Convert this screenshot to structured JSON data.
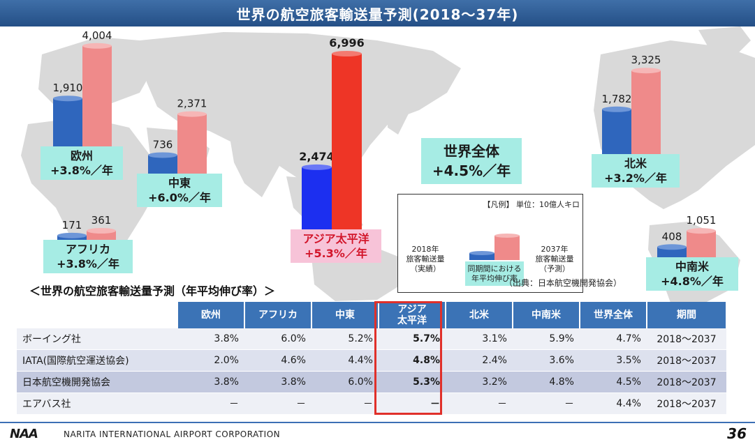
{
  "title": "世界の航空旅客輸送量予測(2018～37年)",
  "chart_data": {
    "type": "bar",
    "unit": "単位：10億人キロ",
    "series": [
      {
        "name": "2018年旅客輸送量（実績）",
        "color": "#2f66bd"
      },
      {
        "name": "2037年旅客輸送量（予測）",
        "color": "#ef8a8a"
      }
    ],
    "regions": [
      {
        "key": "europe",
        "label_line1": "欧州",
        "label_line2": "+3.8%／年",
        "values": [
          1910,
          4004
        ],
        "value_labels": [
          "1,910",
          "4,004"
        ]
      },
      {
        "key": "middle_east",
        "label_line1": "中東",
        "label_line2": "+6.0%／年",
        "values": [
          736,
          2371
        ],
        "value_labels": [
          "736",
          "2,371"
        ]
      },
      {
        "key": "africa",
        "label_line1": "アフリカ",
        "label_line2": "+3.8%／年",
        "values": [
          171,
          361
        ],
        "value_labels": [
          "171",
          "361"
        ]
      },
      {
        "key": "asia_pacific",
        "label_line1": "アジア太平洋",
        "label_line2": "+5.3%／年",
        "values": [
          2474,
          6996
        ],
        "value_labels": [
          "2,474",
          "6,996"
        ]
      },
      {
        "key": "north_america",
        "label_line1": "北米",
        "label_line2": "+3.2%／年",
        "values": [
          1782,
          3325
        ],
        "value_labels": [
          "1,782",
          "3,325"
        ]
      },
      {
        "key": "latin_america",
        "label_line1": "中南米",
        "label_line2": "+4.8%／年",
        "values": [
          408,
          1051
        ],
        "value_labels": [
          "408",
          "1,051"
        ]
      }
    ],
    "world": {
      "line1": "世界全体",
      "line2": "+4.5%／年"
    }
  },
  "legend": {
    "title": "【凡例】 単位：10億人キロ",
    "left_line1": "2018年",
    "left_line2": "旅客輸送量",
    "left_line3": "（実績）",
    "right_line1": "2037年",
    "right_line2": "旅客輸送量",
    "right_line3": "（予測）",
    "center_line1": "同期間における",
    "center_line2": "年平均伸び率"
  },
  "source_note": "（出典：日本航空機開発協会）",
  "table": {
    "heading": "＜世界の航空旅客輸送量予測（年平均伸び率）＞",
    "headers": [
      "",
      "欧州",
      "アフリカ",
      "中東",
      "アジア太平洋",
      "北米",
      "中南米",
      "世界全体",
      "期間"
    ],
    "rows": [
      {
        "label": "ボーイング社",
        "cells": [
          "3.8%",
          "6.0%",
          "5.2%",
          "5.7%",
          "3.1%",
          "5.9%",
          "4.7%"
        ],
        "period": "2018～2037"
      },
      {
        "label": "IATA(国際航空運送協会)",
        "cells": [
          "2.0%",
          "4.6%",
          "4.4%",
          "4.8%",
          "2.4%",
          "3.6%",
          "3.5%"
        ],
        "period": "2018～2037"
      },
      {
        "label": "日本航空機開発協会",
        "cells": [
          "3.8%",
          "3.8%",
          "6.0%",
          "5.3%",
          "3.2%",
          "4.8%",
          "4.5%"
        ],
        "period": "2018～2037"
      },
      {
        "label": "エアバス社",
        "cells": [
          "－",
          "－",
          "－",
          "－",
          "－",
          "－",
          "4.4%"
        ],
        "period": "2018～2037"
      }
    ]
  },
  "footer": {
    "logo": "NAA",
    "organization": "NARITA INTERNATIONAL AIRPORT CORPORATION",
    "page_number": "36"
  }
}
